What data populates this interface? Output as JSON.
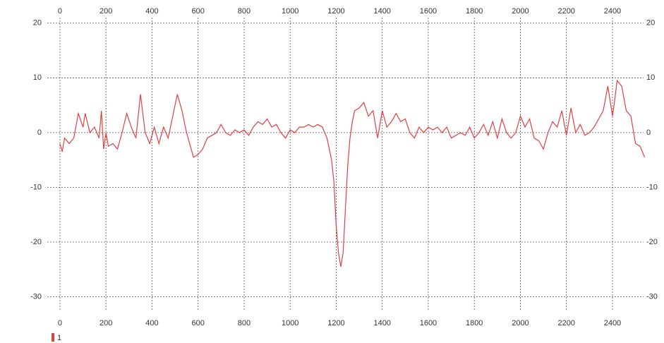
{
  "chart_data": {
    "type": "line",
    "x": [
      0,
      10,
      20,
      40,
      60,
      80,
      100,
      110,
      130,
      150,
      170,
      180,
      190,
      200,
      210,
      230,
      250,
      270,
      290,
      310,
      330,
      350,
      370,
      390,
      410,
      430,
      450,
      470,
      490,
      510,
      530,
      550,
      570,
      580,
      600,
      620,
      640,
      660,
      680,
      700,
      720,
      740,
      760,
      780,
      800,
      820,
      840,
      860,
      880,
      900,
      920,
      940,
      960,
      980,
      1000,
      1020,
      1040,
      1060,
      1080,
      1100,
      1120,
      1140,
      1160,
      1180,
      1190,
      1200,
      1210,
      1220,
      1230,
      1240,
      1250,
      1260,
      1270,
      1280,
      1300,
      1320,
      1340,
      1360,
      1380,
      1400,
      1420,
      1440,
      1460,
      1480,
      1500,
      1520,
      1540,
      1560,
      1580,
      1600,
      1620,
      1640,
      1660,
      1680,
      1700,
      1720,
      1740,
      1760,
      1780,
      1800,
      1820,
      1840,
      1860,
      1880,
      1900,
      1920,
      1940,
      1960,
      1980,
      2000,
      2020,
      2040,
      2060,
      2080,
      2100,
      2120,
      2140,
      2160,
      2180,
      2200,
      2220,
      2240,
      2260,
      2280,
      2300,
      2320,
      2340,
      2360,
      2380,
      2400,
      2410,
      2420,
      2440,
      2460,
      2480,
      2500,
      2520,
      2540
    ],
    "series": [
      {
        "name": "1",
        "color": "#e04040",
        "values": [
          -2,
          -3.5,
          -1,
          -2,
          -1,
          3.5,
          1,
          3.5,
          0,
          1,
          -1,
          4,
          -3,
          0,
          -2.5,
          -2,
          -3,
          0,
          3.5,
          1,
          -1,
          7,
          0,
          -2,
          1,
          -2,
          1,
          -1,
          3,
          7,
          4,
          0,
          -3,
          -4.5,
          -4,
          -3,
          -1,
          -0.5,
          0,
          1.5,
          0,
          -0.5,
          0.5,
          0,
          0.5,
          -0.5,
          1,
          2,
          1.5,
          2.5,
          1,
          1.5,
          0,
          -1,
          0.5,
          0,
          1,
          1,
          1.5,
          1,
          1.5,
          1,
          -1,
          -5,
          -9,
          -17,
          -22,
          -24.5,
          -22,
          -14,
          -6,
          -1,
          2,
          4,
          4.5,
          5.5,
          3,
          4,
          -1,
          4,
          1,
          2,
          3.5,
          2,
          2.5,
          0,
          -1,
          1,
          0,
          1,
          0.5,
          1,
          0,
          1,
          -1,
          -0.5,
          0,
          -0.5,
          1,
          -1,
          0,
          1.5,
          -0.5,
          2,
          -1,
          2.5,
          0,
          -1,
          0,
          3,
          1,
          2.5,
          -1,
          -1.5,
          -3,
          0,
          2,
          1,
          4,
          -0.5,
          4.5,
          0,
          1.5,
          -0.5,
          0,
          1,
          2.5,
          4,
          8.5,
          3,
          6,
          9.5,
          8.5,
          4,
          3,
          -2,
          -2.5,
          -4.5
        ]
      }
    ],
    "xlim": [
      -55,
      2535
    ],
    "xticks": [
      0,
      200,
      400,
      600,
      800,
      1000,
      1200,
      1400,
      1600,
      1800,
      2000,
      2200,
      2400
    ],
    "ylim": [
      -32.5,
      21
    ],
    "yticks": [
      20,
      10,
      0,
      -10,
      -20,
      -30
    ],
    "grid": true
  }
}
